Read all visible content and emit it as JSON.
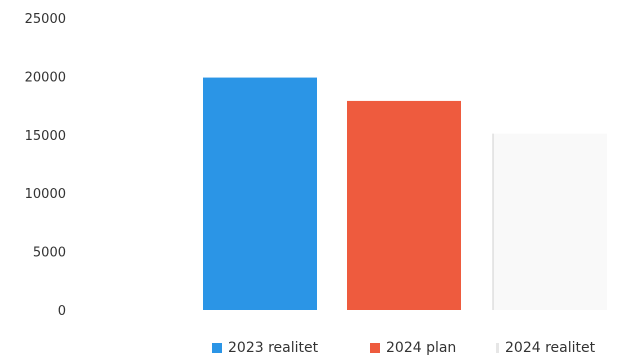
{
  "chart_data": {
    "type": "bar",
    "categories": [
      "2023 realitet",
      "2024 plan",
      "2024 realitet"
    ],
    "values": [
      19900,
      17900,
      15100
    ],
    "ylim": [
      0,
      25000
    ],
    "yticks": [
      "0",
      "5000",
      "10000",
      "15000",
      "20000",
      "25000"
    ],
    "grid": false,
    "legend": [
      "2023 realitet",
      "2024 plan",
      "2024 realitet"
    ],
    "legend_position": "bottom",
    "colors": [
      "#2b95e6",
      "#ee5b3e",
      "#eeeeee"
    ]
  }
}
